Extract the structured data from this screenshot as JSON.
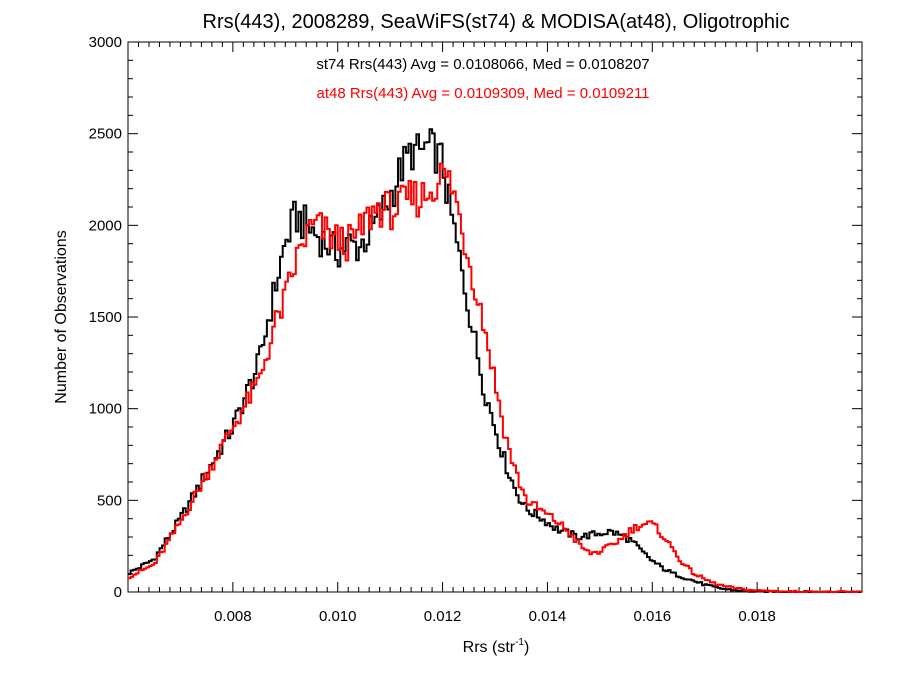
{
  "chart_data": {
    "type": "line",
    "title": "Rrs(443), 2008289, SeaWiFS(st74) & MODISA(at48), Oligotrophic",
    "xlabel": "Rrs (str",
    "xlabel_sup": "-1",
    "xlabel_close": ")",
    "ylabel": "Number of Observations",
    "xlim": [
      0.006,
      0.02
    ],
    "ylim": [
      0,
      3000
    ],
    "xticks": [
      0.008,
      0.01,
      0.012,
      0.014,
      0.016,
      0.018
    ],
    "xtick_labels": [
      "0.008",
      "0.010",
      "0.012",
      "0.014",
      "0.016",
      "0.018"
    ],
    "yticks": [
      0,
      500,
      1000,
      1500,
      2000,
      2500,
      3000
    ],
    "ytick_labels": [
      "0",
      "500",
      "1000",
      "1500",
      "2000",
      "2500",
      "3000"
    ],
    "grid": false,
    "step": true,
    "annotations": [
      {
        "text": "st74 Rrs(443) Avg = 0.0108066, Med = 0.0108207",
        "color": "#000000"
      },
      {
        "text": "at48 Rrs(443) Avg = 0.0109309, Med = 0.0109211",
        "color": "#ff0000"
      }
    ],
    "series": [
      {
        "color": "#000000",
        "x": [
          0.006,
          0.0065,
          0.007,
          0.0075,
          0.008,
          0.0085,
          0.0088,
          0.009,
          0.0092,
          0.0094,
          0.0096,
          0.0098,
          0.01,
          0.0102,
          0.0104,
          0.0106,
          0.0108,
          0.011,
          0.0112,
          0.0114,
          0.0116,
          0.0117,
          0.0118,
          0.0119,
          0.012,
          0.0121,
          0.0122,
          0.0124,
          0.0126,
          0.0128,
          0.013,
          0.0132,
          0.0134,
          0.0136,
          0.0138,
          0.014,
          0.0142,
          0.0144,
          0.0146,
          0.0148,
          0.015,
          0.0152,
          0.0154,
          0.0156,
          0.0158,
          0.016,
          0.0162,
          0.0164,
          0.0166,
          0.0168,
          0.017,
          0.0172,
          0.0174,
          0.0176,
          0.0178,
          0.018,
          0.0185,
          0.019,
          0.0195,
          0.02
        ],
        "y": [
          100,
          180,
          400,
          650,
          900,
          1250,
          1650,
          1900,
          2050,
          2000,
          1950,
          1900,
          1850,
          1900,
          1880,
          1950,
          2050,
          2150,
          2300,
          2400,
          2400,
          2430,
          2420,
          2380,
          2350,
          2150,
          2000,
          1700,
          1400,
          1100,
          900,
          700,
          550,
          450,
          420,
          380,
          340,
          320,
          300,
          310,
          320,
          330,
          310,
          280,
          220,
          170,
          130,
          100,
          80,
          60,
          40,
          25,
          15,
          10,
          5,
          3,
          1,
          0,
          0,
          0
        ]
      },
      {
        "color": "#ff0000",
        "x": [
          0.006,
          0.0065,
          0.007,
          0.0075,
          0.008,
          0.0085,
          0.0088,
          0.009,
          0.0092,
          0.0094,
          0.0096,
          0.0098,
          0.01,
          0.0102,
          0.0104,
          0.0106,
          0.0108,
          0.011,
          0.0112,
          0.0114,
          0.0116,
          0.0117,
          0.0118,
          0.0119,
          0.012,
          0.0121,
          0.0122,
          0.0124,
          0.0126,
          0.0128,
          0.013,
          0.0132,
          0.0134,
          0.0136,
          0.0138,
          0.014,
          0.0142,
          0.0144,
          0.0146,
          0.0148,
          0.015,
          0.0152,
          0.0154,
          0.0156,
          0.0158,
          0.016,
          0.0162,
          0.0164,
          0.0166,
          0.0168,
          0.017,
          0.0172,
          0.0174,
          0.0176,
          0.0178,
          0.018,
          0.0185,
          0.019,
          0.0195,
          0.02
        ],
        "y": [
          80,
          150,
          380,
          640,
          900,
          1150,
          1450,
          1600,
          1800,
          1950,
          2000,
          1950,
          1920,
          1900,
          1950,
          2050,
          2100,
          2080,
          2100,
          2150,
          2150,
          2180,
          2200,
          2250,
          2280,
          2250,
          2200,
          1950,
          1700,
          1450,
          1150,
          850,
          650,
          500,
          460,
          420,
          380,
          330,
          260,
          210,
          220,
          250,
          290,
          340,
          370,
          370,
          310,
          230,
          150,
          100,
          70,
          45,
          30,
          20,
          12,
          8,
          3,
          1,
          0,
          0
        ]
      }
    ]
  }
}
